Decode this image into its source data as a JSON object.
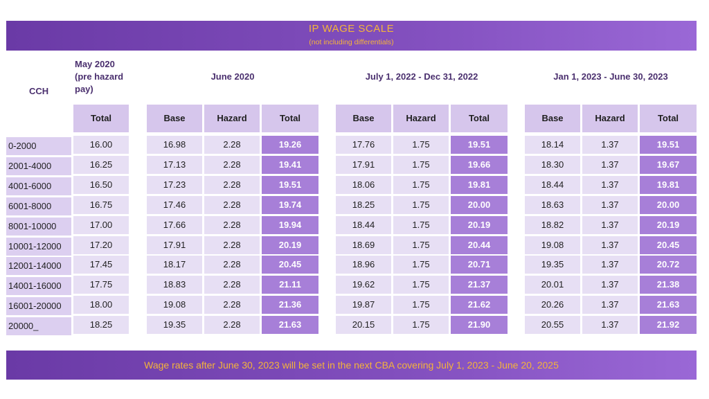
{
  "banner": {
    "title": "IP WAGE SCALE",
    "subtitle": "(not including differentials)",
    "footer": "Wage rates after June 30, 2023 will be set in the next CBA covering July 1, 2023 - June 20, 2025"
  },
  "headers": {
    "cch": "CCH",
    "may2020_line1": "May 2020",
    "may2020_line2": "(pre hazard",
    "may2020_line3": "pay)",
    "june2020": "June 2020",
    "period2022": "July 1, 2022 - Dec 31, 2022",
    "period2023": "Jan 1, 2023 - June 30, 2023",
    "total": "Total",
    "base": "Base",
    "hazard": "Hazard"
  },
  "rows": [
    {
      "cch": "0-2000",
      "may": "16.00",
      "j_base": "16.98",
      "j_haz": "2.28",
      "j_tot": "19.26",
      "a_base": "17.76",
      "a_haz": "1.75",
      "a_tot": "19.51",
      "b_base": "18.14",
      "b_haz": "1.37",
      "b_tot": "19.51"
    },
    {
      "cch": "2001-4000",
      "may": "16.25",
      "j_base": "17.13",
      "j_haz": "2.28",
      "j_tot": "19.41",
      "a_base": "17.91",
      "a_haz": "1.75",
      "a_tot": "19.66",
      "b_base": "18.30",
      "b_haz": "1.37",
      "b_tot": "19.67"
    },
    {
      "cch": "4001-6000",
      "may": "16.50",
      "j_base": "17.23",
      "j_haz": "2.28",
      "j_tot": "19.51",
      "a_base": "18.06",
      "a_haz": "1.75",
      "a_tot": "19.81",
      "b_base": "18.44",
      "b_haz": "1.37",
      "b_tot": "19.81"
    },
    {
      "cch": "6001-8000",
      "may": "16.75",
      "j_base": "17.46",
      "j_haz": "2.28",
      "j_tot": "19.74",
      "a_base": "18.25",
      "a_haz": "1.75",
      "a_tot": "20.00",
      "b_base": "18.63",
      "b_haz": "1.37",
      "b_tot": "20.00"
    },
    {
      "cch": "8001-10000",
      "may": "17.00",
      "j_base": "17.66",
      "j_haz": "2.28",
      "j_tot": "19.94",
      "a_base": "18.44",
      "a_haz": "1.75",
      "a_tot": "20.19",
      "b_base": "18.82",
      "b_haz": "1.37",
      "b_tot": "20.19"
    },
    {
      "cch": "10001-12000",
      "may": "17.20",
      "j_base": "17.91",
      "j_haz": "2.28",
      "j_tot": "20.19",
      "a_base": "18.69",
      "a_haz": "1.75",
      "a_tot": "20.44",
      "b_base": "19.08",
      "b_haz": "1.37",
      "b_tot": "20.45"
    },
    {
      "cch": "12001-14000",
      "may": "17.45",
      "j_base": "18.17",
      "j_haz": "2.28",
      "j_tot": "20.45",
      "a_base": "18.96",
      "a_haz": "1.75",
      "a_tot": "20.71",
      "b_base": "19.35",
      "b_haz": "1.37",
      "b_tot": "20.72"
    },
    {
      "cch": "14001-16000",
      "may": "17.75",
      "j_base": "18.83",
      "j_haz": "2.28",
      "j_tot": "21.11",
      "a_base": "19.62",
      "a_haz": "1.75",
      "a_tot": "21.37",
      "b_base": "20.01",
      "b_haz": "1.37",
      "b_tot": "21.38"
    },
    {
      "cch": "16001-20000",
      "may": "18.00",
      "j_base": "19.08",
      "j_haz": "2.28",
      "j_tot": "21.36",
      "a_base": "19.87",
      "a_haz": "1.75",
      "a_tot": "21.62",
      "b_base": "20.26",
      "b_haz": "1.37",
      "b_tot": "21.63"
    },
    {
      "cch": "20000_",
      "may": "18.25",
      "j_base": "19.35",
      "j_haz": "2.28",
      "j_tot": "21.63",
      "a_base": "20.15",
      "a_haz": "1.75",
      "a_tot": "21.90",
      "b_base": "20.55",
      "b_haz": "1.37",
      "b_tot": "21.92"
    }
  ]
}
